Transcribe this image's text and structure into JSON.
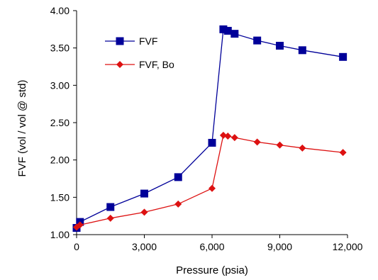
{
  "chart_data": {
    "type": "line",
    "title": "",
    "xlabel": "Pressure (psia)",
    "ylabel": "FVF (vol / vol @ std)",
    "xlim": [
      0,
      12000
    ],
    "ylim": [
      1.0,
      4.0
    ],
    "x_ticks": [
      0,
      3000,
      6000,
      9000,
      12000
    ],
    "x_tick_labels": [
      "0",
      "3,000",
      "6,000",
      "9,000",
      "12,000"
    ],
    "y_ticks": [
      1.0,
      1.5,
      2.0,
      2.5,
      3.0,
      3.5,
      4.0
    ],
    "y_tick_labels": [
      "1.00",
      "1.50",
      "2.00",
      "2.50",
      "3.00",
      "3.50",
      "4.00"
    ],
    "grid": false,
    "legend_position": "top-left",
    "series": [
      {
        "name": "FVF",
        "color": "#000099",
        "marker": "square",
        "x": [
          0,
          150,
          1500,
          3000,
          4500,
          6000,
          6500,
          6700,
          7000,
          8000,
          9000,
          10000,
          11800
        ],
        "y": [
          1.09,
          1.17,
          1.37,
          1.55,
          1.77,
          2.23,
          3.75,
          3.73,
          3.69,
          3.6,
          3.53,
          3.47,
          3.38
        ]
      },
      {
        "name": "FVF, Bo",
        "color": "#dd1111",
        "marker": "diamond",
        "x": [
          0,
          150,
          1500,
          3000,
          4500,
          6000,
          6500,
          6700,
          7000,
          8000,
          9000,
          10000,
          11800
        ],
        "y": [
          1.1,
          1.13,
          1.22,
          1.3,
          1.41,
          1.62,
          2.33,
          2.32,
          2.3,
          2.24,
          2.2,
          2.16,
          2.1
        ]
      }
    ]
  }
}
